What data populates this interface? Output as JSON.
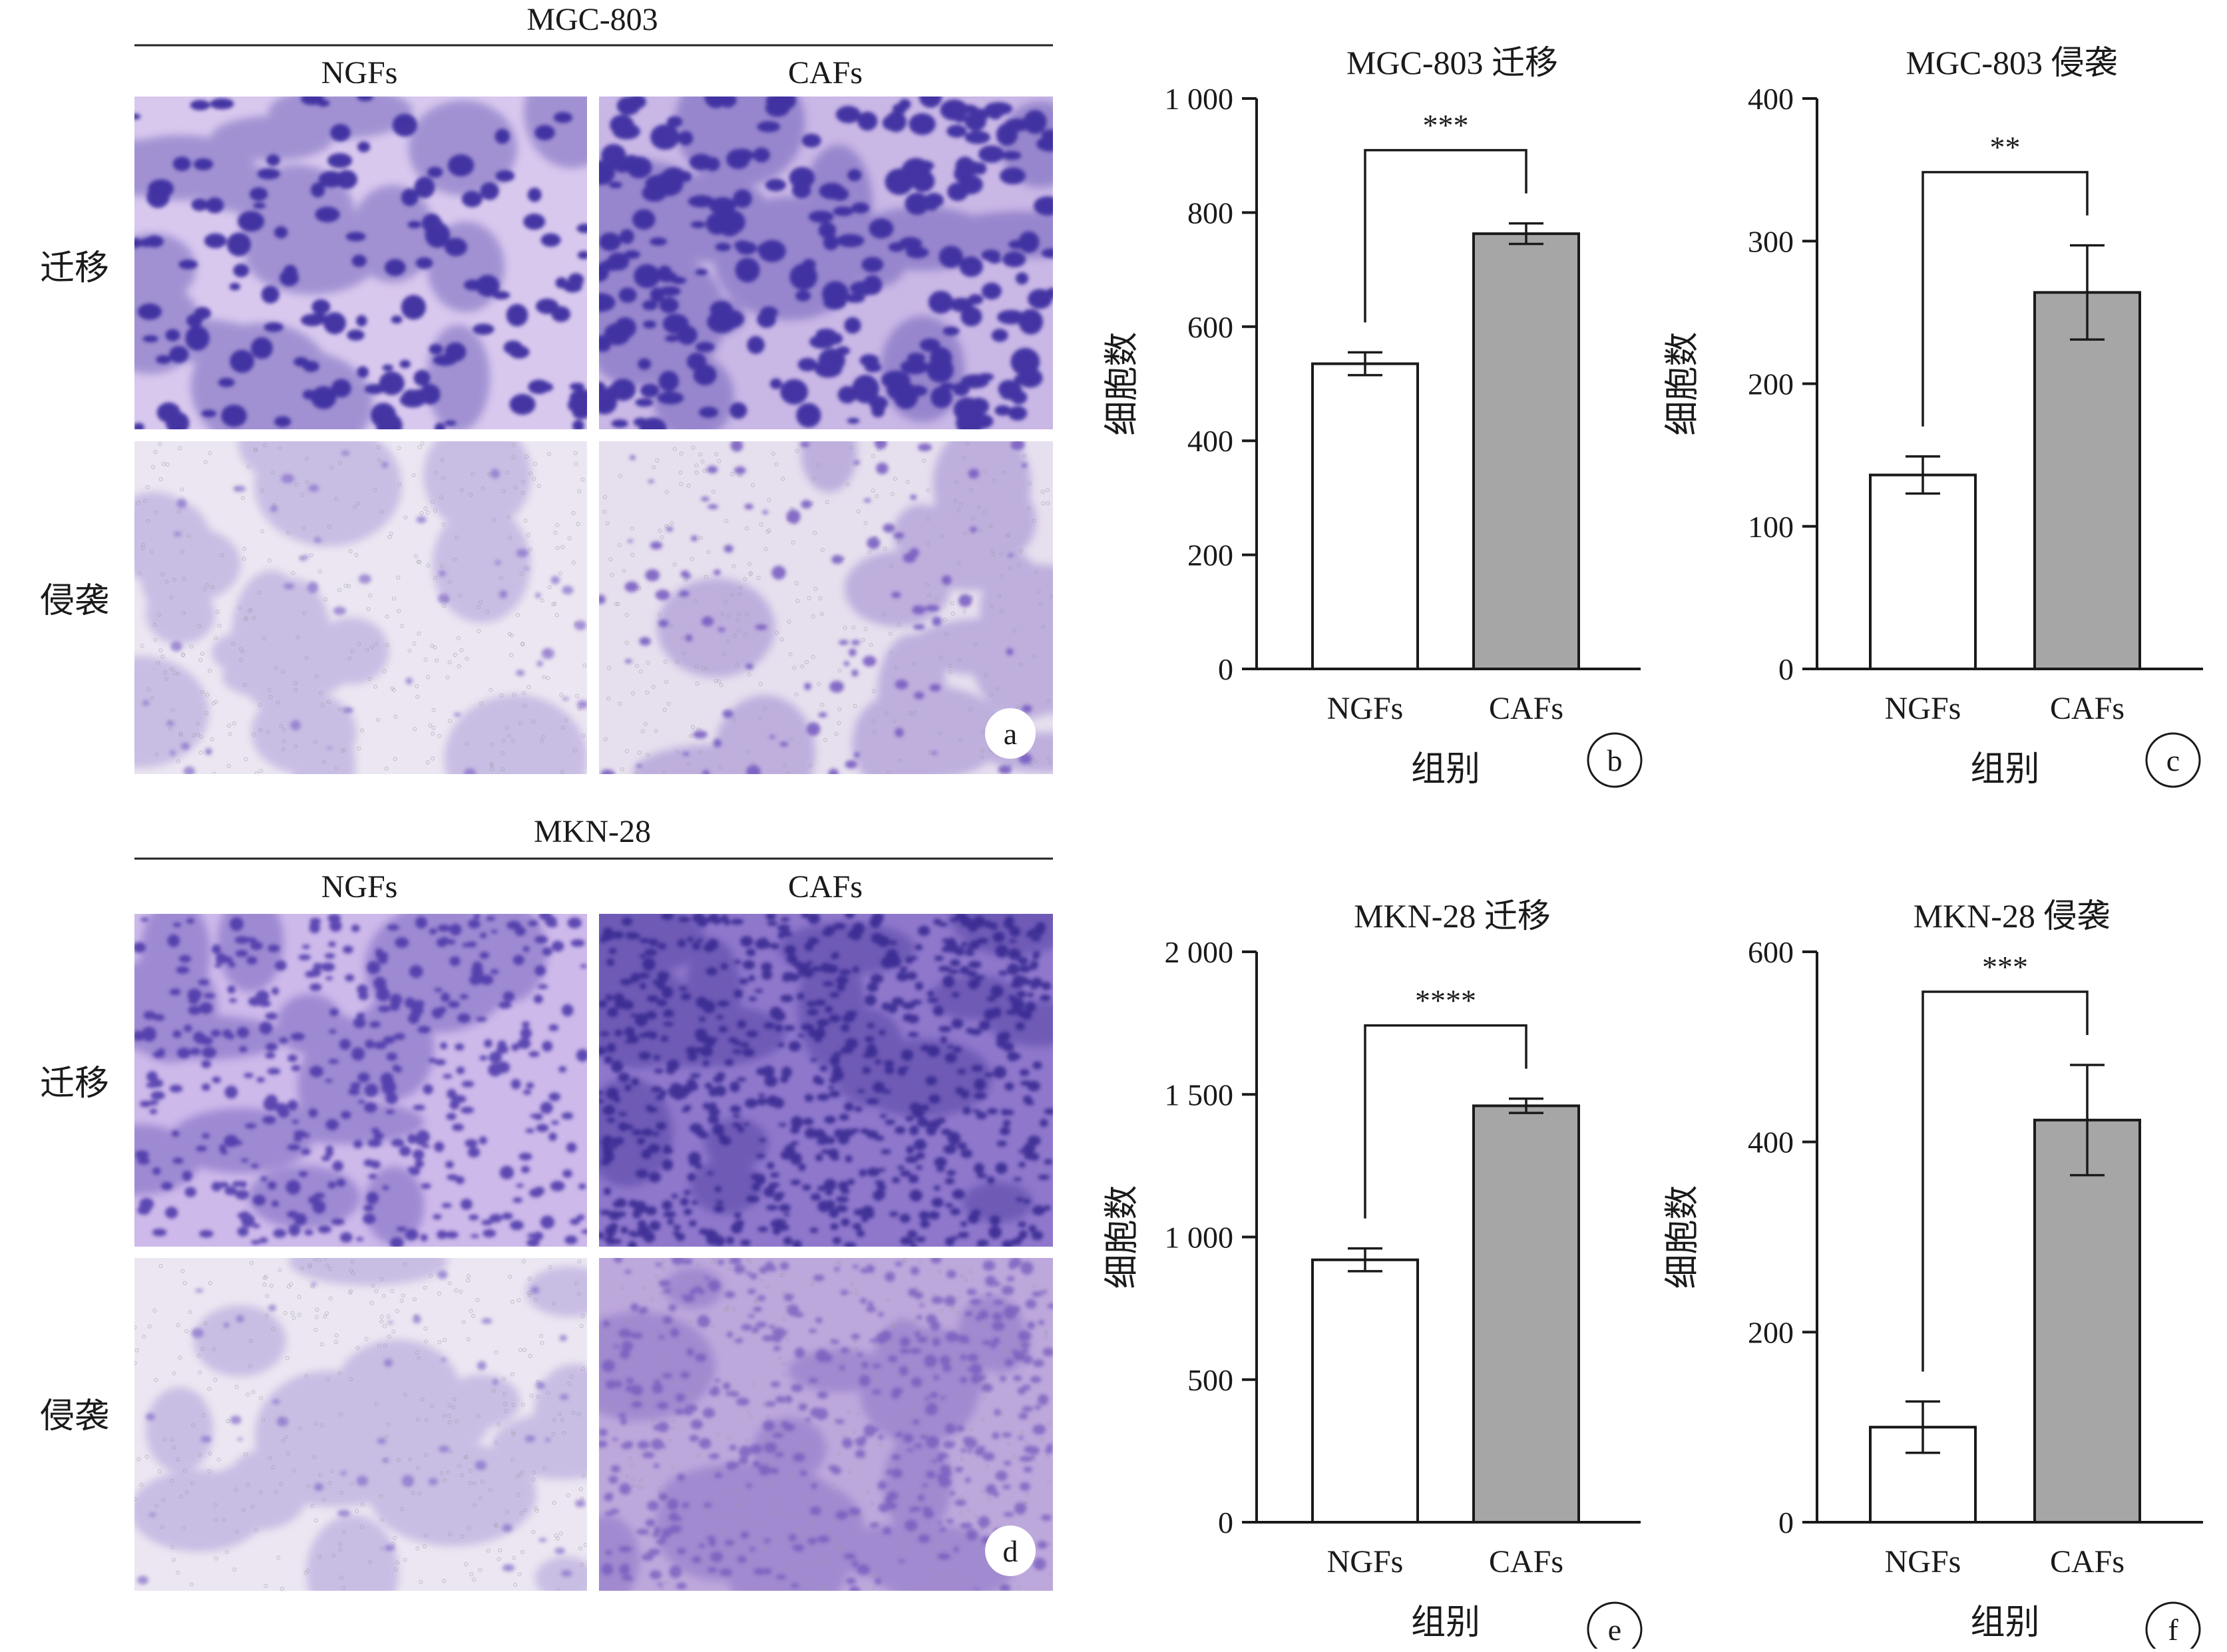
{
  "colors": {
    "ngfs_bar": "#ffffff",
    "cafs_bar": "#a6a6a6",
    "stain_heavy": "#3c2ea0",
    "stain_light": "#8a72cc",
    "background_migration": "#d8c8ee",
    "background_invasion": "#ebe6f1"
  },
  "image_panels": [
    {
      "cell_line": "MGC-803",
      "columns": [
        "NGFs",
        "CAFs"
      ],
      "rows": [
        "迁移",
        "侵袭"
      ],
      "panel_label": "a"
    },
    {
      "cell_line": "MKN-28",
      "columns": [
        "NGFs",
        "CAFs"
      ],
      "rows": [
        "迁移",
        "侵袭"
      ],
      "panel_label": "d"
    }
  ],
  "chart_data": [
    {
      "type": "bar",
      "panel_label": "b",
      "title": "MGC-803 迁移",
      "xlabel": "组别",
      "ylabel": "细胞数",
      "categories": [
        "NGFs",
        "CAFs"
      ],
      "values": [
        535,
        763
      ],
      "errors": [
        20,
        18
      ],
      "ylim": [
        0,
        1000
      ],
      "yticks": [
        0,
        200,
        400,
        600,
        800,
        1000
      ],
      "ytick_labels": [
        "0",
        "200",
        "400",
        "600",
        "800",
        "1 000"
      ],
      "significance": "***"
    },
    {
      "type": "bar",
      "panel_label": "c",
      "title": "MGC-803 侵袭",
      "xlabel": "组别",
      "ylabel": "细胞数",
      "categories": [
        "NGFs",
        "CAFs"
      ],
      "values": [
        136,
        264
      ],
      "errors": [
        13,
        33
      ],
      "ylim": [
        0,
        400
      ],
      "yticks": [
        0,
        100,
        200,
        300,
        400
      ],
      "ytick_labels": [
        "0",
        "100",
        "200",
        "300",
        "400"
      ],
      "significance": "**"
    },
    {
      "type": "bar",
      "panel_label": "e",
      "title": "MKN-28 迁移",
      "xlabel": "组别",
      "ylabel": "细胞数",
      "categories": [
        "NGFs",
        "CAFs"
      ],
      "values": [
        920,
        1460
      ],
      "errors": [
        40,
        25
      ],
      "ylim": [
        0,
        2000
      ],
      "yticks": [
        0,
        500,
        1000,
        1500,
        2000
      ],
      "ytick_labels": [
        "0",
        "500",
        "1 000",
        "1 500",
        "2 000"
      ],
      "significance": "****"
    },
    {
      "type": "bar",
      "panel_label": "f",
      "title": "MKN-28 侵袭",
      "xlabel": "组别",
      "ylabel": "细胞数",
      "categories": [
        "NGFs",
        "CAFs"
      ],
      "values": [
        100,
        423
      ],
      "errors": [
        27,
        58
      ],
      "ylim": [
        0,
        600
      ],
      "yticks": [
        0,
        200,
        400,
        600
      ],
      "ytick_labels": [
        "0",
        "200",
        "400",
        "600"
      ],
      "significance": "***"
    }
  ]
}
